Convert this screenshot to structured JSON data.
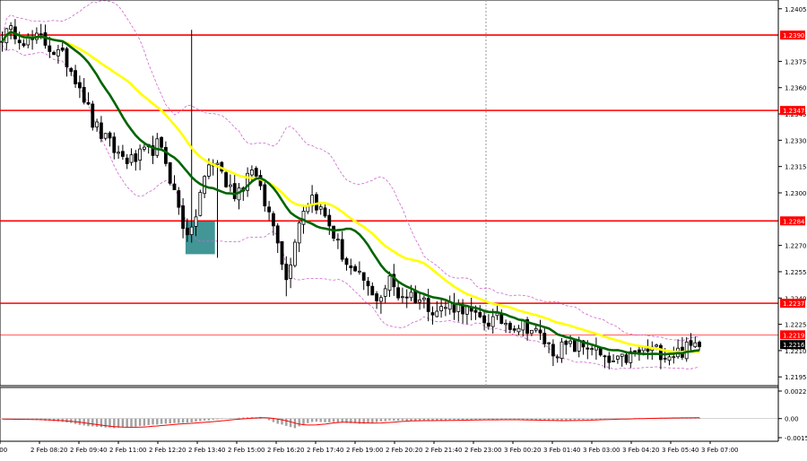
{
  "chart_data": [
    {
      "type": "candlestick",
      "title": "",
      "colors": {
        "candle": "#000000",
        "ma_fast": "#006400",
        "ma_slow": "#ffff00",
        "bollinger": "#cc66cc",
        "level_line": "#ff0000",
        "zone": "#2e8b8b",
        "price_line": "#ff0000",
        "grid": "#cccccc"
      },
      "x_tick_labels": [
        "07:00",
        "2 Feb 08:20",
        "2 Feb 09:40",
        "2 Feb 11:00",
        "2 Feb 12:20",
        "2 Feb 13:40",
        "2 Feb 15:00",
        "2 Feb 16:20",
        "2 Feb 17:40",
        "2 Feb 19:00",
        "2 Feb 20:20",
        "2 Feb 21:40",
        "2 Feb 23:00",
        "3 Feb 00:20",
        "3 Feb 01:40",
        "3 Feb 03:00",
        "3 Feb 04:20",
        "3 Feb 05:40",
        "3 Feb 07:00"
      ],
      "y_tick_labels": [
        "1.2405",
        "1.2375",
        "1.2360",
        "1.2345",
        "1.2330",
        "1.2315",
        "1.2300",
        "1.2270",
        "1.2255",
        "1.2240",
        "1.2225",
        "1.2210",
        "1.2195"
      ],
      "ylim": [
        1.219,
        1.241
      ],
      "close_path": [
        [
          0,
          1.239
        ],
        [
          3,
          1.2392
        ],
        [
          6,
          1.2386
        ],
        [
          9,
          1.2388
        ],
        [
          12,
          1.2381
        ],
        [
          15,
          1.2375
        ],
        [
          18,
          1.2362
        ],
        [
          21,
          1.234
        ],
        [
          24,
          1.233
        ],
        [
          27,
          1.2322
        ],
        [
          30,
          1.2318
        ],
        [
          33,
          1.2322
        ],
        [
          36,
          1.2327
        ],
        [
          38,
          1.2318
        ],
        [
          40,
          1.23
        ],
        [
          42,
          1.2282
        ],
        [
          44,
          1.2276
        ],
        [
          46,
          1.23
        ],
        [
          48,
          1.2315
        ],
        [
          50,
          1.2318
        ],
        [
          52,
          1.2305
        ],
        [
          54,
          1.23
        ],
        [
          56,
          1.2305
        ],
        [
          58,
          1.2316
        ],
        [
          60,
          1.23
        ],
        [
          62,
          1.2288
        ],
        [
          64,
          1.2275
        ],
        [
          66,
          1.225
        ],
        [
          68,
          1.2275
        ],
        [
          70,
          1.2292
        ],
        [
          72,
          1.2298
        ],
        [
          74,
          1.229
        ],
        [
          76,
          1.2282
        ],
        [
          78,
          1.227
        ],
        [
          80,
          1.226
        ],
        [
          82,
          1.2252
        ],
        [
          84,
          1.225
        ],
        [
          86,
          1.224
        ],
        [
          88,
          1.2242
        ],
        [
          90,
          1.225
        ],
        [
          92,
          1.2242
        ],
        [
          95,
          1.2242
        ],
        [
          98,
          1.2238
        ],
        [
          101,
          1.2233
        ],
        [
          104,
          1.2236
        ],
        [
          107,
          1.2235
        ],
        [
          110,
          1.2228
        ],
        [
          113,
          1.2227
        ],
        [
          116,
          1.2227
        ],
        [
          119,
          1.2225
        ],
        [
          122,
          1.2224
        ],
        [
          125,
          1.2218
        ],
        [
          128,
          1.221
        ],
        [
          131,
          1.2212
        ],
        [
          134,
          1.2212
        ],
        [
          137,
          1.2213
        ],
        [
          140,
          1.2203
        ],
        [
          143,
          1.2203
        ],
        [
          146,
          1.2207
        ],
        [
          149,
          1.221
        ],
        [
          152,
          1.221
        ],
        [
          155,
          1.2208
        ],
        [
          158,
          1.221
        ],
        [
          160,
          1.2212
        ],
        [
          162,
          1.2216
        ]
      ],
      "wick_highs": {
        "44": 1.2393
      },
      "wick_lows": {
        "50": 1.2263,
        "66": 1.2241,
        "88": 1.2231,
        "130": 1.2203,
        "140": 1.22
      },
      "levels": [
        {
          "value": 1.239,
          "label": "1.2390"
        },
        {
          "value": 1.2347,
          "label": "1.2347"
        },
        {
          "value": 1.2284,
          "label": "1.2284"
        },
        {
          "value": 1.2237,
          "label": "1.2237"
        }
      ],
      "current_price": {
        "value": 1.2216,
        "label": "1.2216"
      },
      "price_line_label": "1.2219",
      "zone": {
        "index_start": 43,
        "index_end": 49,
        "high": 1.2284,
        "low": 1.2265
      },
      "n_candles": 163,
      "ma_periods": {
        "fast": 14,
        "slow": 30
      },
      "bollinger": {
        "period": 20,
        "deviation": 2
      }
    },
    {
      "type": "histogram",
      "indicator": "oscillator",
      "y_tick_labels": [
        "0.00221",
        "0.00",
        "-0.00153"
      ],
      "ylim": [
        -0.00153,
        0.00221
      ],
      "values_profile": [
        [
          0,
          -4e-05
        ],
        [
          8,
          -0.0001
        ],
        [
          14,
          -0.00025
        ],
        [
          20,
          -0.0006
        ],
        [
          26,
          -0.00075
        ],
        [
          32,
          -0.0006
        ],
        [
          38,
          -0.0004
        ],
        [
          44,
          -0.0003
        ],
        [
          50,
          -5e-05
        ],
        [
          56,
          8e-05
        ],
        [
          60,
          0.00012
        ],
        [
          64,
          -0.0004
        ],
        [
          68,
          -0.00075
        ],
        [
          72,
          -0.00025
        ],
        [
          78,
          -0.0003
        ],
        [
          84,
          -0.00042
        ],
        [
          90,
          -0.00015
        ],
        [
          96,
          -0.00018
        ],
        [
          104,
          -0.00012
        ],
        [
          112,
          -8e-05
        ],
        [
          120,
          -0.00012
        ],
        [
          128,
          -0.00018
        ],
        [
          136,
          -8e-05
        ],
        [
          144,
          0.0
        ],
        [
          150,
          4e-05
        ],
        [
          156,
          6e-05
        ],
        [
          162,
          8e-05
        ]
      ]
    }
  ]
}
